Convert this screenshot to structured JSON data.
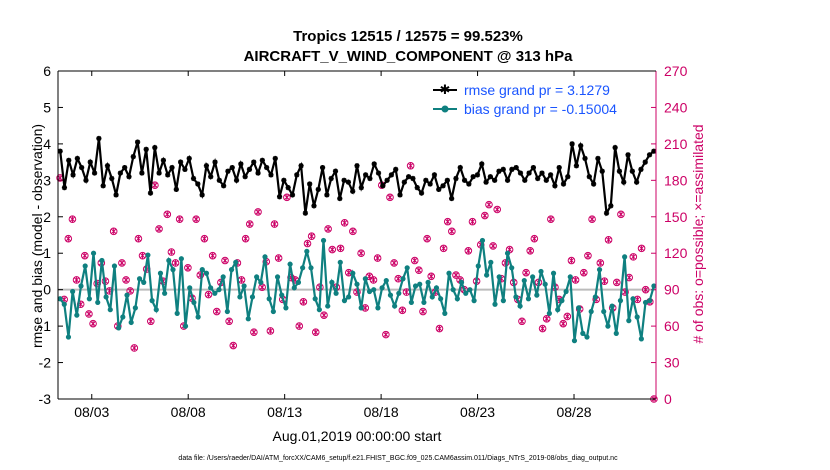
{
  "chart_data": {
    "type": "line",
    "title_line1": "Tropics 12515 / 12575 = 99.523%",
    "title_line2": "AIRCRAFT_V_WIND_COMPONENT @ 313 hPa",
    "xlabel": "Aug.01,2019 00:00:00 start",
    "ylabel": "rmse and bias (model - observation)",
    "ylabel_right": "# of obs: o=possible; ×=assimilated",
    "footnote": "data file: /Users/raeder/DAI/ATM_forcXX/CAM6_setup/f.e21.FHIST_BGC.f09_025.CAM6assim.011/Diags_NTrS_2019-08/obs_diag_output.nc",
    "x_ticks": [
      3,
      8,
      13,
      18,
      23,
      28
    ],
    "x_tick_labels": [
      "08/03",
      "08/08",
      "08/13",
      "08/18",
      "08/23",
      "08/28"
    ],
    "xlim": [
      1.25,
      32.25
    ],
    "ylim": [
      -3,
      6
    ],
    "y_ticks": [
      -3,
      -2,
      -1,
      0,
      1,
      2,
      3,
      4,
      5,
      6
    ],
    "ylim_right": [
      0,
      270
    ],
    "y_ticks_right": [
      0,
      30,
      60,
      90,
      120,
      150,
      180,
      210,
      240,
      270
    ],
    "zero_line": 0,
    "colors": {
      "rmse": "#000000",
      "bias": "#0f8080",
      "obs": "#cc0066",
      "zero_line": "#bbbbbb",
      "legend_text": "#1a55ff",
      "right_axis": "#cc0066"
    },
    "series": [
      {
        "name": "rmse grand pr = 3.1279",
        "marker": "star",
        "values": [
          3.8,
          2.8,
          3.55,
          3.15,
          3.6,
          3.35,
          3.0,
          3.5,
          3.2,
          4.15,
          2.85,
          3.4,
          3.05,
          2.6,
          3.2,
          3.35,
          3.1,
          3.65,
          4.05,
          3.2,
          3.85,
          2.65,
          3.9,
          3.2,
          3.55,
          3.15,
          3.35,
          2.75,
          3.5,
          3.3,
          3.6,
          3.05,
          2.9,
          2.6,
          3.4,
          3.1,
          3.5,
          3.0,
          2.85,
          3.25,
          3.35,
          3.0,
          3.45,
          3.1,
          3.3,
          3.5,
          3.2,
          3.55,
          3.35,
          3.15,
          3.6,
          2.55,
          3.0,
          2.8,
          2.6,
          3.15,
          3.4,
          2.1,
          2.9,
          2.3,
          2.75,
          3.35,
          2.6,
          3.05,
          3.25,
          2.5,
          3.0,
          2.95,
          2.7,
          3.4,
          2.8,
          3.15,
          3.05,
          3.45,
          3.2,
          2.85,
          3.0,
          3.15,
          3.3,
          2.6,
          2.95,
          3.1,
          3.05,
          2.8,
          2.65,
          3.0,
          2.9,
          3.15,
          2.75,
          2.85,
          3.0,
          2.5,
          3.05,
          3.35,
          3.0,
          2.9,
          3.1,
          3.15,
          3.45,
          2.95,
          3.1,
          3.0,
          3.25,
          3.3,
          3.0,
          3.3,
          3.35,
          3.2,
          3.0,
          3.2,
          3.35,
          3.05,
          3.2,
          3.0,
          3.15,
          2.85,
          3.35,
          2.9,
          3.1,
          4.0,
          3.4,
          3.95,
          3.6,
          3.1,
          2.9,
          3.6,
          3.25,
          2.1,
          2.3,
          3.9,
          3.25,
          2.95,
          3.7,
          3.25,
          2.95,
          3.3,
          3.5,
          3.7,
          3.8
        ]
      },
      {
        "name": "bias grand pr = -0.15004",
        "marker": "circle",
        "values": [
          -0.25,
          -0.4,
          -1.3,
          -0.05,
          -0.7,
          0.1,
          0.65,
          -0.25,
          1.0,
          -0.35,
          0.8,
          -0.2,
          -0.55,
          0.65,
          -1.05,
          -0.75,
          -0.15,
          -0.9,
          -0.5,
          0.3,
          0.2,
          0.95,
          -0.3,
          -0.55,
          0.45,
          -0.1,
          0.8,
          0.55,
          -0.65,
          0.85,
          -1.0,
          0.05,
          -0.35,
          -0.75,
          0.55,
          0.45,
          0.05,
          -0.1,
          0.0,
          0.35,
          -0.6,
          0.55,
          0.75,
          -0.2,
          0.1,
          -0.8,
          -0.2,
          0.35,
          0.2,
          0.9,
          -0.25,
          -0.6,
          0.35,
          -0.15,
          -0.5,
          0.7,
          0.05,
          0.2,
          0.6,
          1.05,
          0.6,
          -0.25,
          -0.55,
          1.35,
          -0.45,
          0.2,
          -0.1,
          0.75,
          -0.3,
          -0.2,
          0.45,
          0.15,
          -0.5,
          0.3,
          -0.05,
          0.0,
          -0.5,
          0.05,
          0.25,
          -0.15,
          -0.45,
          -0.1,
          0.3,
          0.6,
          -0.35,
          0.1,
          0.15,
          -0.35,
          0.2,
          -0.2,
          0.05,
          -0.25,
          -0.65,
          0.45,
          0.0,
          -0.25,
          0.2,
          -0.1,
          0.0,
          -0.3,
          0.65,
          1.35,
          0.4,
          0.75,
          -0.4,
          0.35,
          -0.3,
          1.0,
          0.6,
          -0.2,
          -0.45,
          0.25,
          -0.25,
          0.35,
          -0.15,
          0.5,
          0.15,
          -0.65,
          0.45,
          -0.55,
          -0.3,
          -0.05,
          0.35,
          -1.4,
          -0.5,
          -1.2,
          -1.3,
          -0.6,
          -0.2,
          0.55,
          -0.6,
          -1.0,
          -0.45,
          -1.2,
          -0.3,
          0.9,
          -0.85,
          -0.25,
          -0.75,
          -1.35,
          -0.35,
          -0.3,
          0.1
        ]
      },
      {
        "name": "# of obs possible",
        "axis": "right",
        "marker": "o",
        "values": [
          182,
          82,
          132,
          148,
          98,
          78,
          118,
          70,
          62,
          95,
          112,
          97,
          89,
          138,
          60,
          112,
          98,
          89,
          42,
          132,
          118,
          107,
          64,
          176,
          140,
          97,
          152,
          121,
          112,
          148,
          60,
          108,
          83,
          148,
          102,
          132,
          86,
          118,
          72,
          96,
          114,
          64,
          44,
          112,
          98,
          132,
          144,
          55,
          154,
          92,
          113,
          56,
          144,
          116,
          82,
          166,
          100,
          98,
          60,
          80,
          128,
          134,
          55,
          92,
          69,
          140,
          123,
          92,
          124,
          145,
          104,
          138,
          88,
          120,
          75,
          101,
          98,
          116,
          176,
          53,
          166,
          112,
          99,
          73,
          88,
          192,
          114,
          106,
          72,
          132,
          101,
          88,
          58,
          124,
          146,
          138,
          102,
          98,
          90,
          122,
          146,
          97,
          127,
          151,
          160,
          126,
          156,
          99,
          112,
          123,
          96,
          82,
          64,
          104,
          122,
          132,
          96,
          58,
          66,
          148,
          92,
          82,
          62,
          68,
          114,
          98,
          74,
          104,
          118,
          148,
          82,
          112,
          97,
          131,
          75,
          96,
          152,
          88,
          100,
          117,
          82,
          124,
          90,
          80,
          0
        ]
      },
      {
        "name": "# of obs assimilated",
        "axis": "right",
        "marker": "*",
        "values": [
          182,
          82,
          132,
          148,
          98,
          78,
          118,
          70,
          62,
          95,
          112,
          97,
          89,
          138,
          60,
          112,
          98,
          89,
          42,
          132,
          118,
          107,
          64,
          176,
          140,
          97,
          152,
          121,
          112,
          148,
          60,
          108,
          83,
          148,
          102,
          132,
          86,
          118,
          72,
          96,
          114,
          64,
          44,
          112,
          98,
          132,
          144,
          55,
          154,
          92,
          113,
          56,
          144,
          116,
          82,
          166,
          100,
          98,
          60,
          80,
          128,
          134,
          55,
          92,
          69,
          140,
          123,
          92,
          124,
          145,
          104,
          138,
          88,
          120,
          75,
          101,
          98,
          116,
          176,
          53,
          166,
          112,
          99,
          73,
          88,
          192,
          114,
          106,
          72,
          132,
          101,
          88,
          58,
          124,
          146,
          138,
          102,
          98,
          90,
          122,
          146,
          97,
          127,
          151,
          160,
          126,
          156,
          99,
          112,
          123,
          96,
          82,
          64,
          104,
          122,
          132,
          96,
          58,
          66,
          148,
          92,
          82,
          62,
          68,
          114,
          98,
          74,
          104,
          118,
          148,
          82,
          112,
          97,
          131,
          75,
          96,
          152,
          88,
          100,
          117,
          82,
          124,
          90,
          80,
          0
        ]
      }
    ],
    "legend": [
      "rmse grand pr = 3.1279",
      "bias grand pr = -0.15004"
    ],
    "legend_position": "top-right",
    "grid": false
  }
}
